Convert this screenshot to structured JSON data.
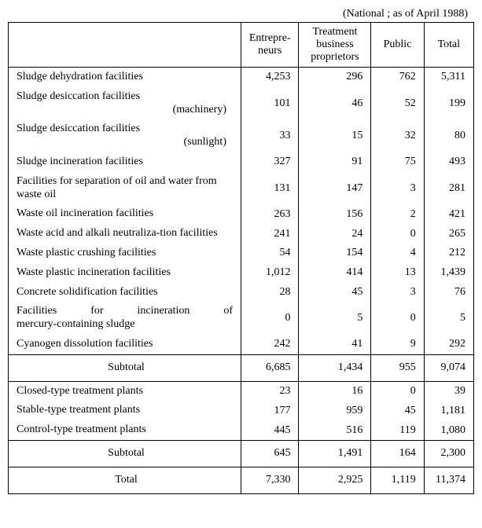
{
  "caption": "(National ; as of April 1988)",
  "columns": [
    "",
    "Entrepre-\nneurs",
    "Treatment\nbusiness\nproprietors",
    "Public",
    "Total"
  ],
  "column_widths": [
    "290px",
    "72px",
    "90px",
    "66px",
    "62px"
  ],
  "sections": [
    {
      "rows": [
        {
          "label": "Sludge dehydration facilities",
          "v": [
            "4,253",
            "296",
            "762",
            "5,311"
          ]
        },
        {
          "label": "Sludge desiccation facilities",
          "indent": "(machinery)",
          "v": [
            "101",
            "46",
            "52",
            "199"
          ]
        },
        {
          "label": "Sludge desiccation facilities",
          "indent": "(sunlight)",
          "v": [
            "33",
            "15",
            "32",
            "80"
          ]
        },
        {
          "label": "Sludge incineration facilities",
          "v": [
            "327",
            "91",
            "75",
            "493"
          ]
        },
        {
          "label": "Facilities for separation of oil and water from waste oil",
          "v": [
            "131",
            "147",
            "3",
            "281"
          ]
        },
        {
          "label": "Waste oil incineration facilities",
          "v": [
            "263",
            "156",
            "2",
            "421"
          ]
        },
        {
          "label": "Waste acid and alkali neutraliza-tion facilities",
          "v": [
            "241",
            "24",
            "0",
            "265"
          ]
        },
        {
          "label": "Waste plastic crushing facilities",
          "v": [
            "54",
            "154",
            "4",
            "212"
          ]
        },
        {
          "label": "Waste plastic incineration facilities",
          "v": [
            "1,012",
            "414",
            "13",
            "1,439"
          ]
        },
        {
          "label": "Concrete solidification facilities",
          "v": [
            "28",
            "45",
            "3",
            "76"
          ]
        },
        {
          "label": "Facilities for incineration of mercury-containing sludge",
          "justify": true,
          "v": [
            "0",
            "5",
            "0",
            "5"
          ]
        },
        {
          "label": "Cyanogen dissolution facilities",
          "v": [
            "242",
            "41",
            "9",
            "292"
          ]
        }
      ],
      "subtotal": {
        "label": "Subtotal",
        "v": [
          "6,685",
          "1,434",
          "955",
          "9,074"
        ]
      }
    },
    {
      "rows": [
        {
          "label": "Closed-type treatment plants",
          "v": [
            "23",
            "16",
            "0",
            "39"
          ]
        },
        {
          "label": "Stable-type treatment plants",
          "v": [
            "177",
            "959",
            "45",
            "1,181"
          ]
        },
        {
          "label": "Control-type treatment plants",
          "v": [
            "445",
            "516",
            "119",
            "1,080"
          ]
        }
      ],
      "subtotal": {
        "label": "Subtotal",
        "v": [
          "645",
          "1,491",
          "164",
          "2,300"
        ]
      }
    }
  ],
  "total": {
    "label": "Total",
    "v": [
      "7,330",
      "2,925",
      "1,119",
      "11,374"
    ]
  },
  "style": {
    "font_family": "Times New Roman",
    "font_size_pt": 11,
    "border_color": "#000000",
    "background_color": "#ffffff",
    "text_color": "#000000"
  }
}
